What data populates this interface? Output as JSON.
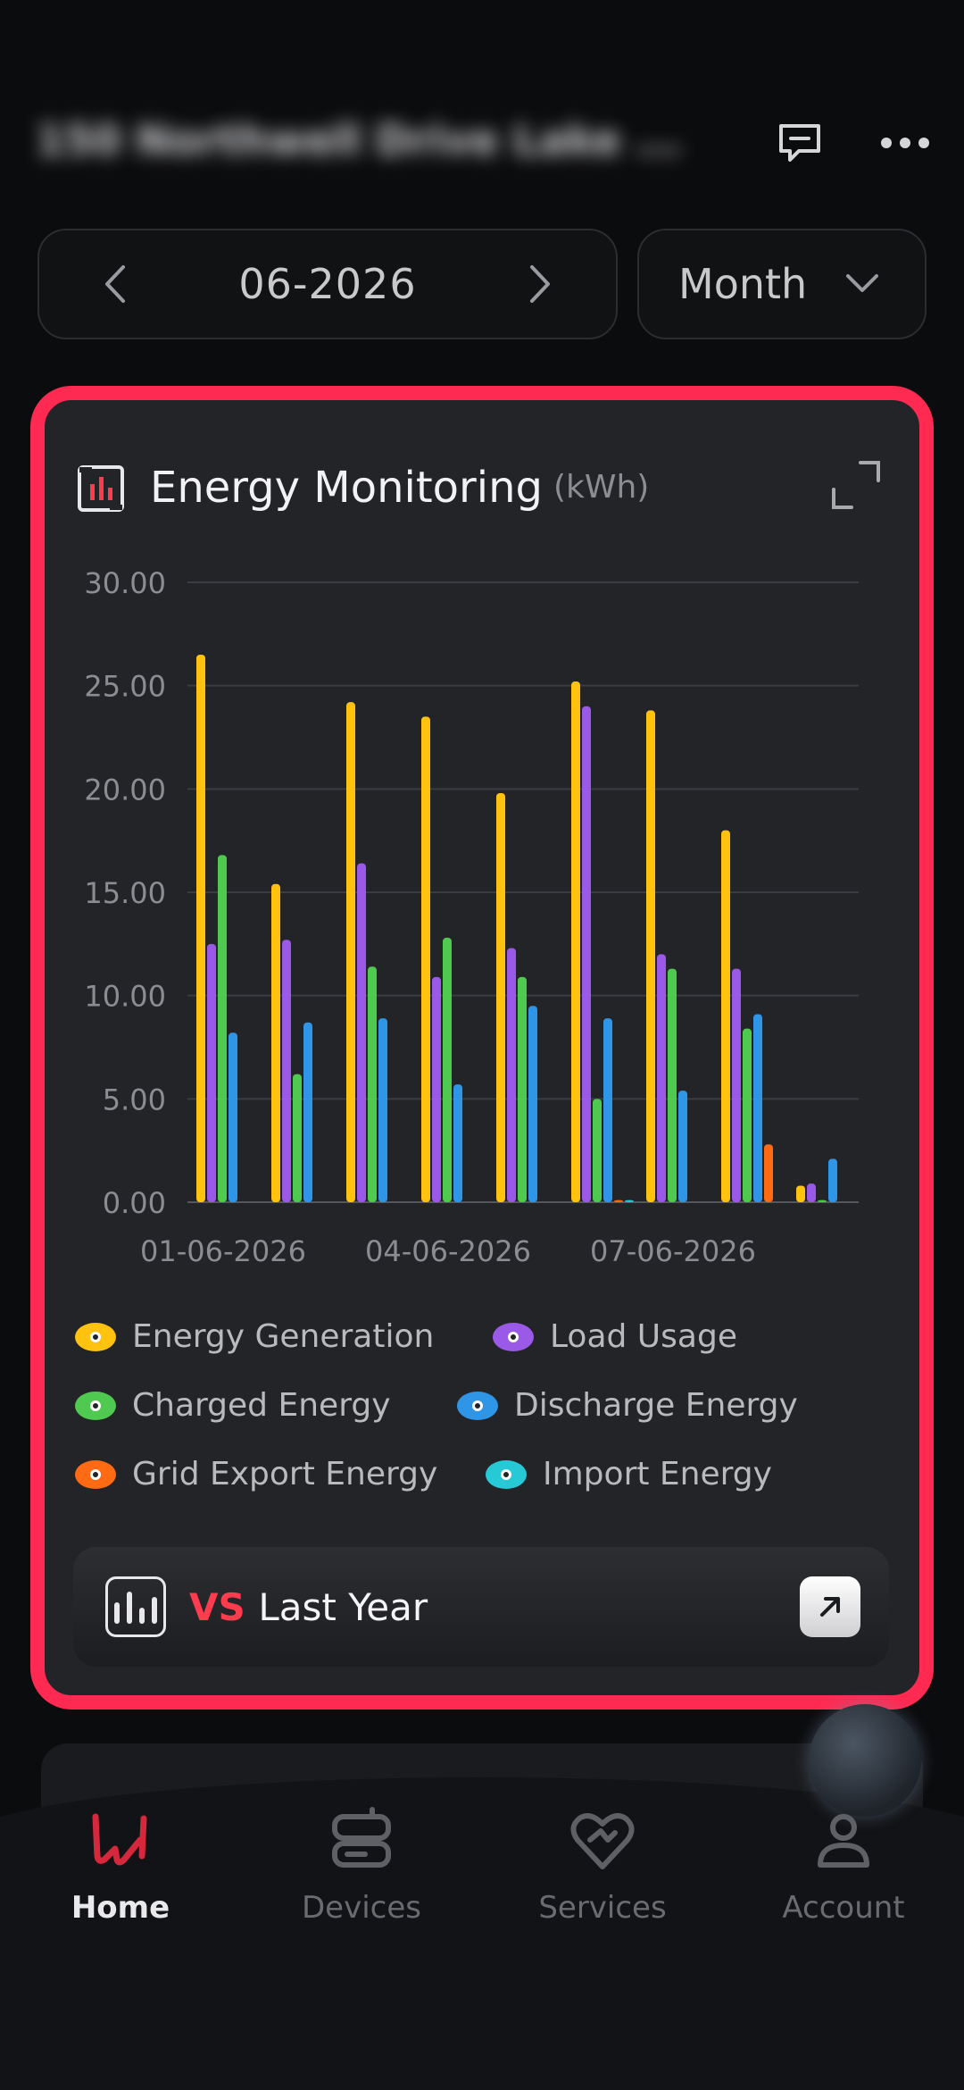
{
  "header": {
    "address": "150 Northwell Drive Lake ...",
    "chat_icon": "message-icon",
    "more_icon": "more-dots-icon"
  },
  "controls": {
    "date": "06-2026",
    "period": "Month"
  },
  "card": {
    "title": "Energy Monitoring",
    "unit": "(kWh)",
    "vs_prefix": "VS",
    "vs_label": "Last Year"
  },
  "legend": [
    {
      "label": "Energy Generation",
      "color": "#ffc20e"
    },
    {
      "label": "Load Usage",
      "color": "#9b59e8"
    },
    {
      "label": "Charged Energy",
      "color": "#4fc94f"
    },
    {
      "label": "Discharge Energy",
      "color": "#2f95e6"
    },
    {
      "label": "Grid Export Energy",
      "color": "#ff6a13"
    },
    {
      "label": "Import Energy",
      "color": "#27c9d6"
    }
  ],
  "chart_data": {
    "type": "bar",
    "categories": [
      "01-06-2026",
      "02-06-2026",
      "03-06-2026",
      "04-06-2026",
      "05-06-2026",
      "06-06-2026",
      "07-06-2026",
      "08-06-2026",
      "09-06-2026"
    ],
    "x_tick_labels": [
      "01-06-2026",
      "04-06-2026",
      "07-06-2026"
    ],
    "y_tick_labels": [
      "0.00",
      "5.00",
      "10.00",
      "15.00",
      "20.00",
      "25.00",
      "30.00"
    ],
    "ylim": [
      0,
      30
    ],
    "grid": true,
    "legend_position": "bottom",
    "series": [
      {
        "name": "Energy Generation",
        "color": "#ffc20e",
        "values": [
          26.5,
          15.4,
          24.2,
          23.5,
          19.8,
          25.2,
          23.8,
          18.0,
          0.8
        ]
      },
      {
        "name": "Load Usage",
        "color": "#9b59e8",
        "values": [
          12.5,
          12.7,
          16.4,
          10.9,
          12.3,
          24.0,
          12.0,
          11.3,
          0.9
        ]
      },
      {
        "name": "Charged Energy",
        "color": "#4fc94f",
        "values": [
          16.8,
          6.2,
          11.4,
          12.8,
          10.9,
          5.0,
          11.3,
          8.4,
          0.1
        ]
      },
      {
        "name": "Discharge Energy",
        "color": "#2f95e6",
        "values": [
          8.2,
          8.7,
          8.9,
          5.7,
          9.5,
          8.9,
          5.4,
          9.1,
          2.1
        ]
      },
      {
        "name": "Grid Export Energy",
        "color": "#ff6a13",
        "values": [
          0,
          0,
          0,
          0,
          0,
          0.1,
          0,
          2.8,
          0
        ]
      },
      {
        "name": "Import Energy",
        "color": "#27c9d6",
        "values": [
          0,
          0,
          0,
          0,
          0,
          0.1,
          0,
          0,
          0
        ]
      }
    ]
  },
  "nav": {
    "items": [
      {
        "label": "Home",
        "icon": "home-logo-icon"
      },
      {
        "label": "Devices",
        "icon": "devices-icon"
      },
      {
        "label": "Services",
        "icon": "services-heart-icon"
      },
      {
        "label": "Account",
        "icon": "account-icon"
      }
    ]
  }
}
